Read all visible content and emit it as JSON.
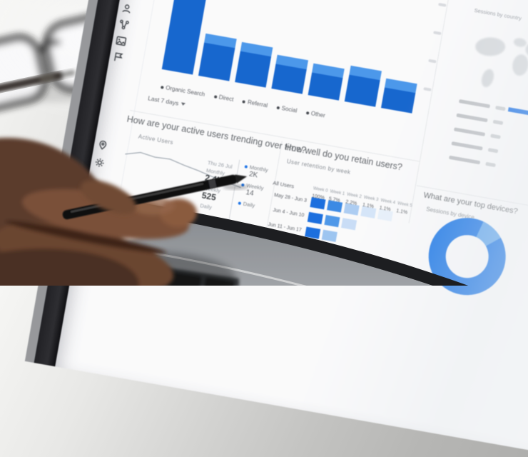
{
  "colors": {
    "accent_blue": "#1a73e8",
    "bar_blue": "#1566d0",
    "bar_cap_blue": "#4b98ec",
    "donut_blue": "#1272e8",
    "donut_light": "#5aa4f0"
  },
  "sidebar": {
    "icon_names": [
      "person",
      "share",
      "image",
      "flag",
      "pin",
      "gear"
    ]
  },
  "acquisition": {
    "legend": [
      "Organic Search",
      "Direct",
      "Referral",
      "Social",
      "Other"
    ],
    "date_range_label": "Last 7 days",
    "chart_data": {
      "type": "bar",
      "bars_pct": [
        100,
        20,
        19,
        16,
        15,
        17,
        14
      ],
      "bar_color": "#1566d0",
      "cap_color": "#4b98ec"
    }
  },
  "active_users": {
    "question": "How are your active users trending over time?",
    "card_label": "Active Users",
    "tooltip": {
      "date": "Thu 26 Jul",
      "rows": [
        {
          "label": "Monthly",
          "value": "2.4K"
        },
        {
          "label": "Weekly",
          "value": "525"
        },
        {
          "label": "Daily",
          "value": ""
        }
      ]
    },
    "legend": [
      {
        "label": "Monthly",
        "value": "2K"
      },
      {
        "label": "Weekly",
        "value": "14"
      },
      {
        "label": "Daily",
        "value": ""
      }
    ],
    "chart_data": {
      "type": "line",
      "trend": "declining",
      "ys": [
        12,
        6,
        9,
        8,
        13,
        17,
        22,
        26,
        30
      ]
    }
  },
  "retention": {
    "question": "How well do you retain users?",
    "card_label": "User retention by week",
    "week_headers": [
      "Week 0",
      "Week 1",
      "Week 2",
      "Week 3",
      "Week 4",
      "Week 5"
    ],
    "all_users_label": "All Users",
    "all_users_values": [
      "100%",
      "5.7%",
      "2.2%",
      "1.1%",
      "1.1%",
      "1.1%"
    ],
    "chart_data": {
      "type": "heatmap",
      "cohorts": [
        {
          "label": "May 28 - Jun 3",
          "cells": [
            "#1a6fe0",
            "#3b8ae6",
            "#aecff4",
            "#d7e7fa",
            "#e9f2fc"
          ]
        },
        {
          "label": "Jun 4 - Jun 10",
          "cells": [
            "#1a6fe0",
            "#4e99ea",
            "#cadff8"
          ]
        },
        {
          "label": "Jun 11 - Jun 17",
          "cells": [
            "#1a6fe0",
            "#9ec6f2"
          ]
        }
      ]
    }
  },
  "geo": {
    "card_label": "Sessions by country",
    "row_count": 5
  },
  "devices": {
    "question": "What are your top devices?",
    "card_label": "Sessions by device",
    "chart_data": {
      "type": "donut",
      "segments": [
        {
          "color": "#5aa4f0",
          "deg": 36
        },
        {
          "color": "#1272e8",
          "deg": 324
        }
      ]
    }
  }
}
